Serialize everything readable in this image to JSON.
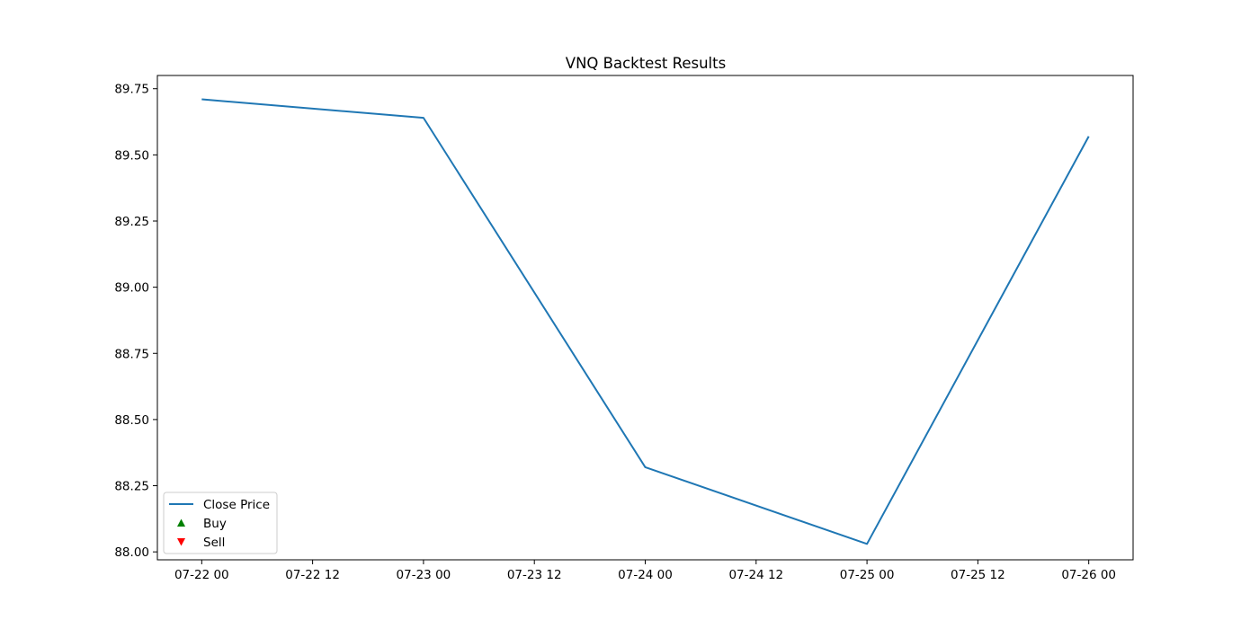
{
  "chart_data": {
    "type": "line",
    "title": "VNQ Backtest Results",
    "xlabel": "",
    "ylabel": "",
    "x_ticks": [
      "07-22 00",
      "07-22 12",
      "07-23 00",
      "07-23 12",
      "07-24 00",
      "07-24 12",
      "07-25 00",
      "07-25 12",
      "07-26 00"
    ],
    "y_ticks": [
      "88.00",
      "88.25",
      "88.50",
      "88.75",
      "89.00",
      "89.25",
      "89.50",
      "89.75"
    ],
    "ylim": [
      87.97,
      89.8
    ],
    "xlim": [
      "07-21 19:12",
      "07-26 04:48"
    ],
    "grid": false,
    "legend_position": "lower left",
    "series": [
      {
        "name": "Close Price",
        "color": "#1f77b4",
        "x": [
          "07-22 00",
          "07-23 00",
          "07-24 00",
          "07-25 00",
          "07-26 00"
        ],
        "values": [
          89.71,
          89.64,
          88.32,
          88.03,
          89.57
        ]
      }
    ],
    "buy_signals": [],
    "sell_signals": [],
    "legend": [
      {
        "label": "Close Price",
        "marker": "line",
        "color": "#1f77b4"
      },
      {
        "label": "Buy",
        "marker": "triangle-up",
        "color": "#008000"
      },
      {
        "label": "Sell",
        "marker": "triangle-down",
        "color": "#ff0000"
      }
    ]
  }
}
